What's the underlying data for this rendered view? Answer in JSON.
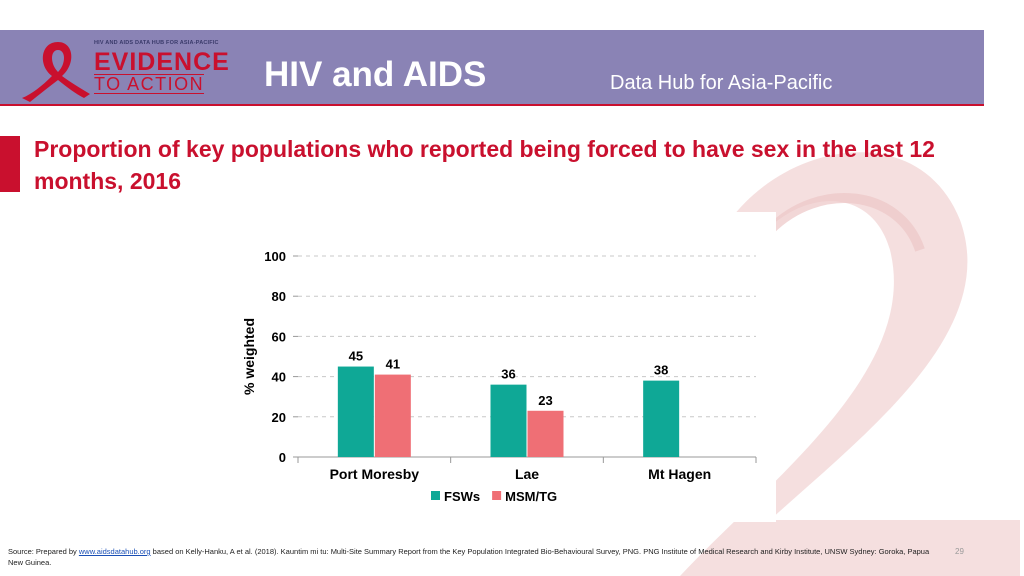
{
  "header": {
    "logo_top": "HIV AND AIDS DATA HUB FOR ASIA-PACIFIC",
    "logo_evidence": "EVIDENCE",
    "logo_action": "TO ACTION",
    "title": "HIV and AIDS",
    "subtitle": "Data Hub for Asia-Pacific"
  },
  "slide": {
    "title": "Proportion of key populations who reported being forced to have sex in the last 12 months, 2016"
  },
  "colors": {
    "header_bg": "#8a83b5",
    "accent_red": "#c9102e",
    "fsws": "#0fa896",
    "msm_tg": "#ef6f75"
  },
  "chart_data": {
    "type": "bar",
    "categories": [
      "Port Moresby",
      "Lae",
      "Mt Hagen"
    ],
    "series": [
      {
        "name": "FSWs",
        "values": [
          45,
          36,
          38
        ],
        "color": "#0fa896"
      },
      {
        "name": "MSM/TG",
        "values": [
          41,
          23,
          null
        ],
        "color": "#ef6f75"
      }
    ],
    "ylabel": "% weighted",
    "xlabel": "",
    "ylim": [
      0,
      100
    ],
    "yticks": [
      0,
      20,
      40,
      60,
      80,
      100
    ],
    "grid": true,
    "legend": "bottom"
  },
  "footer": {
    "source_prefix": "Source: Prepared by ",
    "source_link": "www.aidsdatahub.org",
    "source_rest": " based on Kelly-Hanku, A et al. (2018). Kauntim mi tu: Multi-Site Summary Report from the Key Population Integrated Bio-Behavioural Survey, PNG. PNG Institute of Medical Research and Kirby Institute, UNSW Sydney: Goroka, Papua New Guinea.",
    "page_number": "29"
  }
}
